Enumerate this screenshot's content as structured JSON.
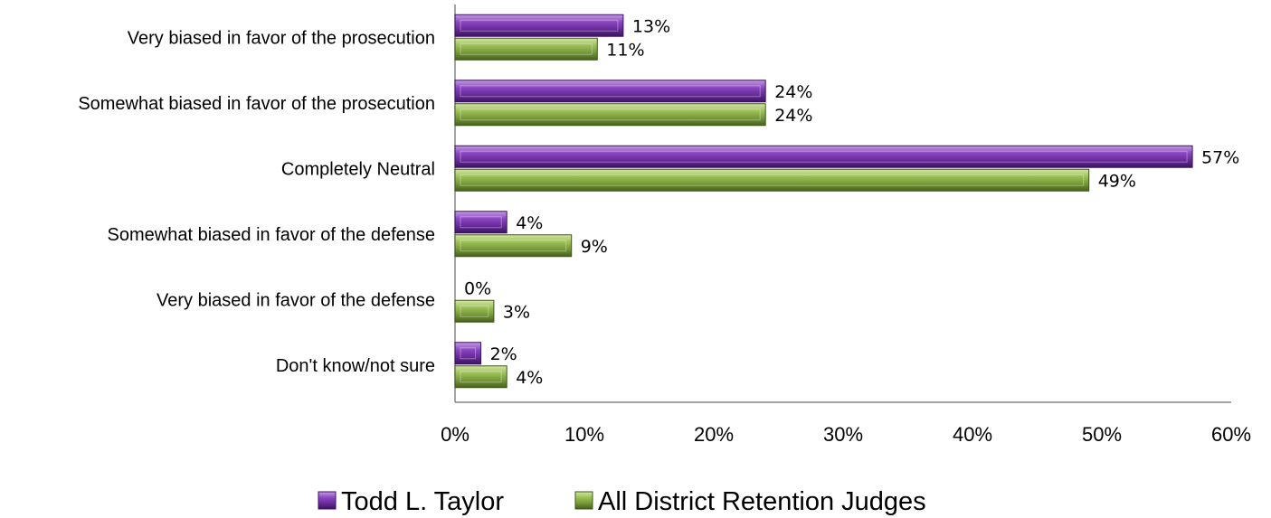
{
  "chart_data": {
    "type": "bar",
    "orientation": "horizontal",
    "categories": [
      "Very biased in favor of the prosecution",
      "Somewhat biased in favor of the prosecution",
      "Completely Neutral",
      "Somewhat biased in favor of the defense",
      "Very biased in favor of the defense",
      "Don't know/not sure"
    ],
    "series": [
      {
        "name": "Todd L. Taylor",
        "values": [
          13,
          24,
          57,
          4,
          0,
          2
        ],
        "labels": [
          "13%",
          "24%",
          "57%",
          "4%",
          "0%",
          "2%"
        ],
        "color": "#7030a0"
      },
      {
        "name": "All District Retention Judges",
        "values": [
          11,
          24,
          49,
          9,
          3,
          4
        ],
        "labels": [
          "11%",
          "24%",
          "49%",
          "9%",
          "3%",
          "4%"
        ],
        "color": "#77933c"
      }
    ],
    "x_ticks": [
      "0%",
      "10%",
      "20%",
      "30%",
      "40%",
      "50%",
      "60%"
    ],
    "xlim": [
      0,
      60
    ],
    "grid": false,
    "legend_position": "bottom"
  }
}
